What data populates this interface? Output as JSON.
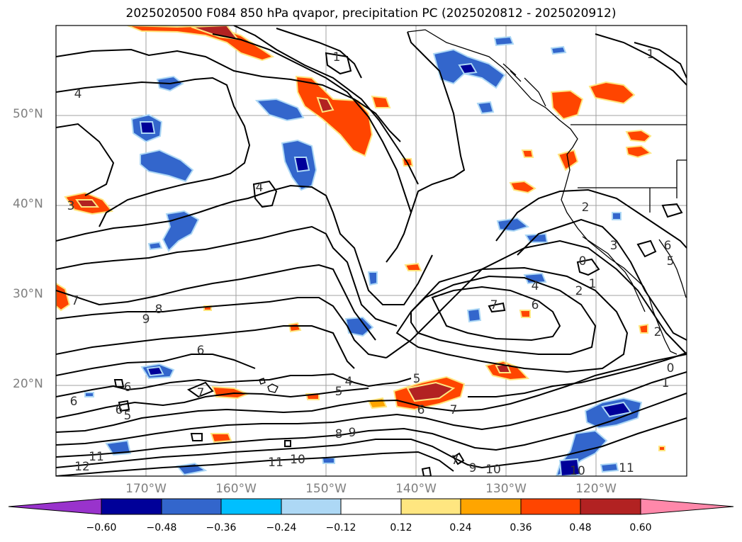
{
  "title": "2025020500 F084 850 hPa qvapor, precipitation PC (2025020812 - 2025020912)",
  "map": {
    "lat_labels": [
      "50°N",
      "40°N",
      "30°N",
      "20°N"
    ],
    "lon_labels": [
      "170°W",
      "160°W",
      "150°W",
      "140°W",
      "130°W",
      "120°W"
    ],
    "contour_labels": [
      "1",
      "1",
      "4",
      "3",
      "4",
      "7",
      "8",
      "9",
      "6",
      "6",
      "6",
      "7",
      "6",
      "5",
      "5",
      "4",
      "5",
      "6",
      "7",
      "8",
      "9",
      "11",
      "12",
      "11",
      "10",
      "7",
      "9",
      "10",
      "10",
      "11",
      "7",
      "6",
      "4",
      "2",
      "1",
      "0",
      "2",
      "1",
      "0",
      "2",
      "3",
      "6",
      "5"
    ]
  },
  "colorbar": {
    "colors": [
      "#9933cc",
      "#000099",
      "#3366cc",
      "#00bfff",
      "#add8f5",
      "#ffffff",
      "#ffe680",
      "#ffa500",
      "#ff4500",
      "#b22222",
      "#ff88aa"
    ],
    "ticks": [
      "−0.60",
      "−0.48",
      "−0.36",
      "−0.24",
      "−0.12",
      "0.12",
      "0.24",
      "0.36",
      "0.48",
      "0.60"
    ]
  }
}
